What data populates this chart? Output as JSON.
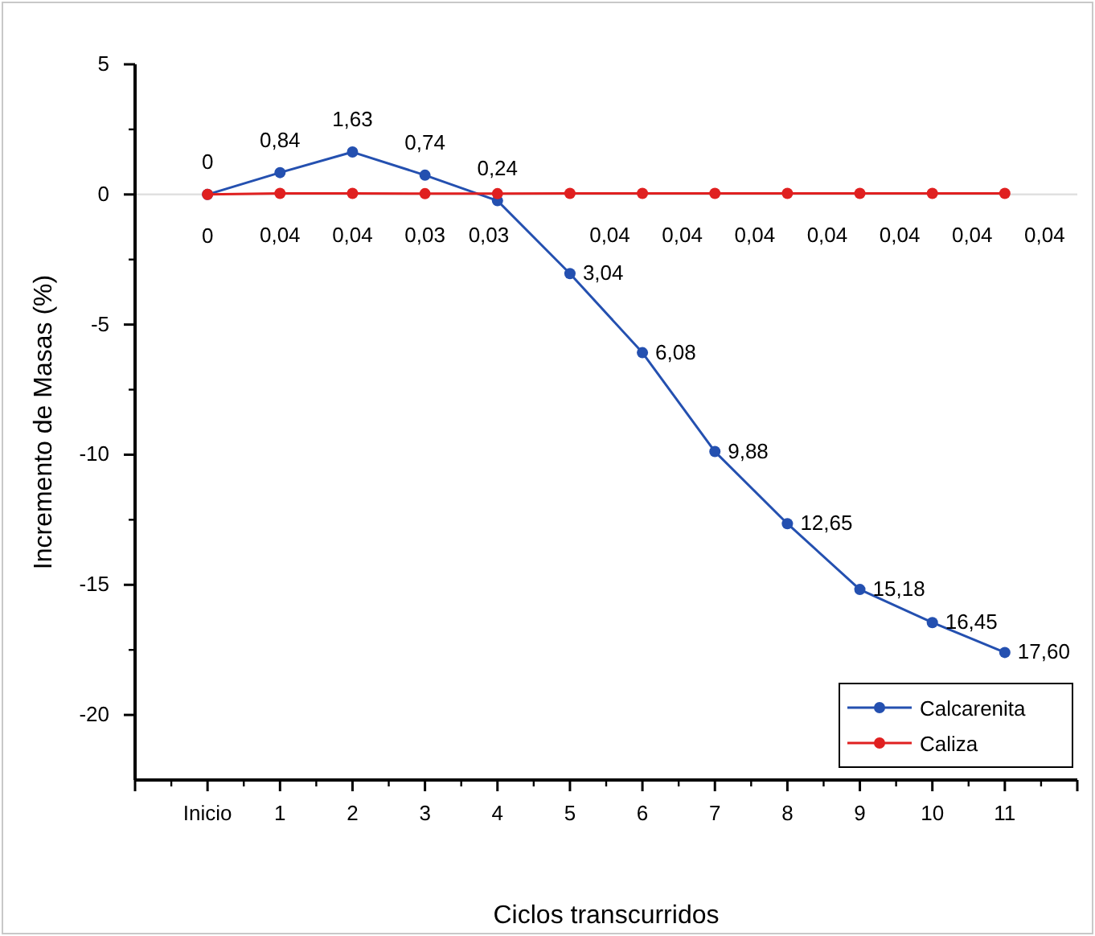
{
  "chart_data": {
    "type": "line",
    "xlabel": "Ciclos transcurridos",
    "ylabel": "Incremento de Masas (%)",
    "categories": [
      "Inicio",
      "1",
      "2",
      "3",
      "4",
      "5",
      "6",
      "7",
      "8",
      "9",
      "10",
      "11"
    ],
    "ylim": [
      -22.5,
      5
    ],
    "yticks": [
      -20,
      -15,
      -10,
      -5,
      0,
      5
    ],
    "series": [
      {
        "name": "Calcarenita",
        "color": "#2450b0",
        "values": [
          0,
          0.84,
          1.63,
          0.74,
          -0.24,
          -3.04,
          -6.08,
          -9.88,
          -12.65,
          -15.18,
          -16.45,
          -17.6
        ],
        "value_labels": [
          "0",
          "0,84",
          "1,63",
          "0,74",
          null,
          null,
          null,
          null,
          null,
          null,
          null,
          null
        ]
      },
      {
        "name": "Caliza",
        "color": "#e02020",
        "values": [
          0,
          0.04,
          0.04,
          0.03,
          0.03,
          0.04,
          0.04,
          0.04,
          0.04,
          0.04,
          0.04,
          0.04
        ],
        "value_labels": [
          "0",
          "0,04",
          "0,04",
          "0,03",
          "0,03",
          "0,04",
          "0,04",
          "0,04",
          "0,04",
          "0,04",
          "0,04",
          "0,04"
        ]
      }
    ],
    "annotations": [
      {
        "text": "0,24",
        "x": "4",
        "y": -0.24
      },
      {
        "text": "3,04",
        "x": "5",
        "y": -3.04
      },
      {
        "text": "6,08",
        "x": "6",
        "y": -6.08
      },
      {
        "text": "9,88",
        "x": "7",
        "y": -9.88
      },
      {
        "text": "12,65",
        "x": "8",
        "y": -12.65
      },
      {
        "text": "15,18",
        "x": "9",
        "y": -15.18
      },
      {
        "text": "16,45",
        "x": "10",
        "y": -16.45
      },
      {
        "text": "17,60",
        "x": "11",
        "y": -17.6
      }
    ],
    "ref_lines": [
      {
        "axis": "y",
        "value": 0,
        "color": "#e0e0e0"
      }
    ],
    "marker": "circle",
    "line_style": "solid",
    "legend": "bottom right",
    "grid": false
  }
}
